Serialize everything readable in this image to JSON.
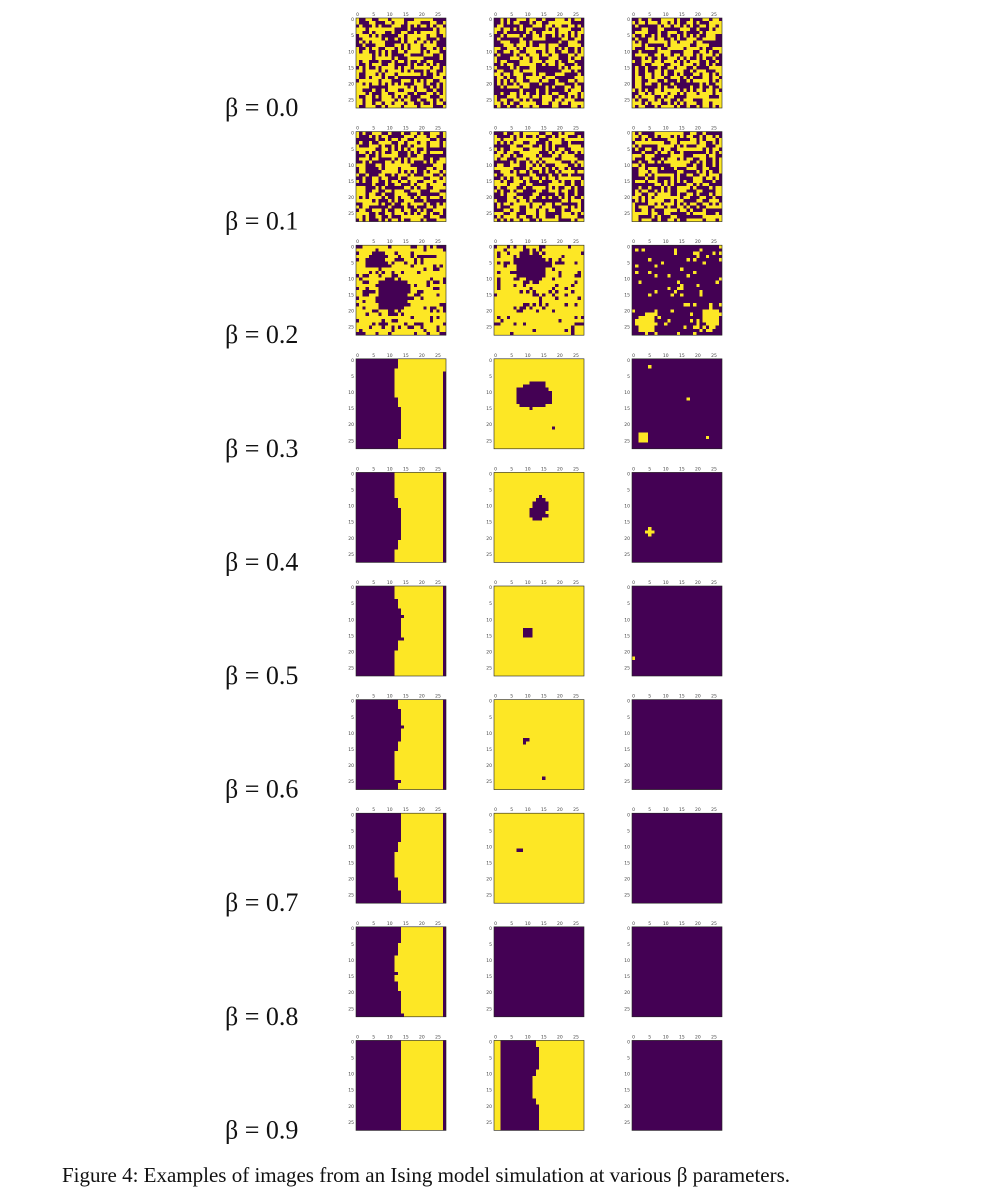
{
  "row_labels": [
    "β = 0.0",
    "β = 0.1",
    "β = 0.2",
    "β = 0.3",
    "β = 0.4",
    "β = 0.5",
    "β = 0.6",
    "β = 0.7",
    "β = 0.8",
    "β = 0.9"
  ],
  "panel_ticks": [
    0,
    5,
    10,
    15,
    20,
    25
  ],
  "caption": "Figure 4: Examples of images from an Ising model simulation at various β parameters."
}
